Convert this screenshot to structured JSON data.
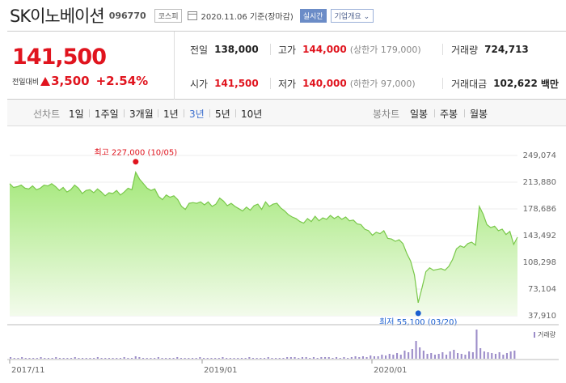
{
  "header": {
    "company": "SK이노베이션",
    "code": "096770",
    "market": "코스피",
    "date_text": "2020.11.06 기준(장마감)",
    "realtime_label": "실시간",
    "overview_label": "기업개요"
  },
  "quote": {
    "current": "141,500",
    "change_label": "전일대비",
    "change": "3,500",
    "change_rate": "+2.54%",
    "prev_label": "전일",
    "prev": "138,000",
    "high_label": "고가",
    "high": "144,000",
    "upper_limit": "(상한가 179,000)",
    "volume_label": "거래량",
    "volume": "724,713",
    "open_label": "시가",
    "open": "141,500",
    "low_label": "저가",
    "low": "140,000",
    "lower_limit": "(하한가 97,000)",
    "amount_label": "거래대금",
    "amount": "102,622",
    "amount_unit": "백만"
  },
  "tabs": {
    "line_label": "선차트",
    "line": [
      "1일",
      "1주일",
      "3개월",
      "1년",
      "3년",
      "5년",
      "10년"
    ],
    "selected_line": "3년",
    "candle_label": "봉차트",
    "candle": [
      "일봉",
      "주봉",
      "월봉"
    ]
  },
  "colors": {
    "up": "#e0141e",
    "down": "#1a5fd1",
    "area_top": "#a4e87a",
    "area_bottom": "#f1fbe9",
    "line": "#79c84a",
    "accent": "#3b6ecd"
  },
  "chart_data": {
    "type": "area",
    "y_ticks": [
      "249,074",
      "213,880",
      "178,686",
      "143,492",
      "108,298",
      "73,104",
      "37,910"
    ],
    "ylim": [
      37910,
      249074
    ],
    "x_labels": [
      "2017/11",
      "2019/01",
      "2020/01"
    ],
    "high_annotation": "최고 227,000 (10/05)",
    "low_annotation": "최저 55,100 (03/20)",
    "volume_label": "거래량",
    "prices": [
      212000,
      207000,
      208000,
      210000,
      206000,
      205000,
      209000,
      204000,
      206000,
      210000,
      209000,
      212000,
      208000,
      203000,
      207000,
      201000,
      204000,
      210000,
      206000,
      199000,
      203000,
      204000,
      200000,
      205000,
      201000,
      196000,
      200000,
      199000,
      203000,
      197000,
      201000,
      206000,
      204000,
      227000,
      218000,
      212000,
      206000,
      203000,
      205000,
      195000,
      191000,
      197000,
      194000,
      196000,
      191000,
      182000,
      178000,
      186000,
      187000,
      186000,
      188000,
      184000,
      188000,
      182000,
      185000,
      193000,
      189000,
      183000,
      186000,
      182000,
      179000,
      176000,
      181000,
      177000,
      183000,
      185000,
      178000,
      188000,
      182000,
      185000,
      186000,
      180000,
      176000,
      171000,
      168000,
      166000,
      162000,
      160000,
      166000,
      162000,
      169000,
      163000,
      167000,
      165000,
      170000,
      166000,
      169000,
      165000,
      168000,
      163000,
      164000,
      159000,
      158000,
      152000,
      150000,
      144000,
      148000,
      146000,
      150000,
      140000,
      139000,
      136000,
      138000,
      133000,
      120000,
      110000,
      92000,
      55100,
      75000,
      96000,
      101000,
      98000,
      99000,
      100000,
      98000,
      103000,
      112000,
      126000,
      130000,
      128000,
      133000,
      135000,
      131000,
      182000,
      172000,
      158000,
      154000,
      156000,
      150000,
      152000,
      145000,
      149000,
      132000,
      141500
    ],
    "volumes": [
      2,
      1,
      1,
      2,
      1,
      1,
      1,
      1,
      2,
      1,
      1,
      1,
      2,
      1,
      1,
      1,
      1,
      2,
      1,
      1,
      1,
      1,
      1,
      2,
      1,
      1,
      1,
      1,
      1,
      1,
      2,
      1,
      1,
      3,
      2,
      1,
      1,
      1,
      1,
      2,
      1,
      1,
      1,
      1,
      2,
      1,
      1,
      1,
      1,
      1,
      2,
      1,
      1,
      1,
      1,
      1,
      2,
      1,
      1,
      1,
      1,
      1,
      1,
      2,
      1,
      1,
      1,
      1,
      2,
      1,
      1,
      1,
      1,
      2,
      2,
      2,
      1,
      2,
      2,
      1,
      2,
      1,
      2,
      2,
      2,
      1,
      2,
      1,
      2,
      1,
      2,
      3,
      2,
      3,
      2,
      4,
      3,
      3,
      5,
      4,
      6,
      5,
      7,
      5,
      10,
      8,
      12,
      22,
      14,
      10,
      6,
      7,
      5,
      6,
      8,
      5,
      9,
      11,
      7,
      6,
      5,
      9,
      8,
      36,
      13,
      9,
      8,
      7,
      6,
      8,
      5,
      7,
      9,
      10
    ]
  }
}
